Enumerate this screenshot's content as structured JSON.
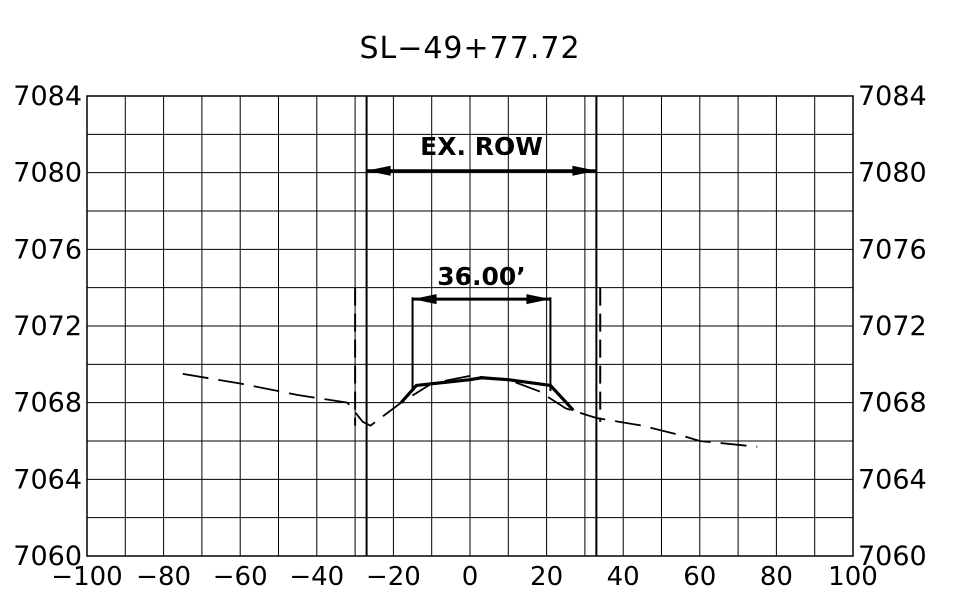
{
  "chart_data": {
    "type": "line",
    "title": "SL−49+77.72",
    "xlabel": "",
    "ylabel": "",
    "xlim": [
      -100,
      100
    ],
    "ylim": [
      7060,
      7084
    ],
    "grid": true,
    "x_ticks": [
      "−100",
      "−80",
      "−60",
      "−40",
      "−20",
      "0",
      "20",
      "40",
      "60",
      "80",
      "100"
    ],
    "y_ticks": [
      "7084",
      "7080",
      "7076",
      "7072",
      "7068",
      "7064",
      "7060"
    ],
    "series": [
      {
        "line_style": "dashed",
        "points": [
          [
            -75,
            7069.5
          ],
          [
            -60,
            7069.0
          ],
          [
            -45,
            7068.4
          ],
          [
            -32,
            7068.0
          ],
          [
            -28,
            7067.0
          ],
          [
            -26,
            7066.8
          ],
          [
            -18,
            7068.0
          ],
          [
            -10,
            7069.0
          ],
          [
            0,
            7069.4
          ],
          [
            10,
            7069.2
          ],
          [
            18,
            7068.6
          ],
          [
            25,
            7067.7
          ],
          [
            33,
            7067.2
          ],
          [
            45,
            7066.8
          ],
          [
            55,
            7066.3
          ],
          [
            60,
            7066.0
          ],
          [
            75,
            7065.7
          ]
        ]
      },
      {
        "line_style": "solid-heavy",
        "points": [
          [
            -18,
            7068.0
          ],
          [
            -14,
            7068.9
          ],
          [
            0,
            7069.2
          ],
          [
            3,
            7069.3
          ],
          [
            10,
            7069.2
          ],
          [
            21,
            7068.9
          ],
          [
            27,
            7067.6
          ]
        ]
      }
    ],
    "vertical_lines": [
      {
        "x": -27,
        "style": "solid"
      },
      {
        "x": 33,
        "style": "solid"
      },
      {
        "x": -30,
        "style": "dashed",
        "y_range": [
          7066.8,
          7074.0
        ]
      },
      {
        "x": 34,
        "style": "dashed",
        "y_range": [
          7067.0,
          7074.0
        ]
      },
      {
        "x": -15,
        "style": "solid",
        "y_range": [
          7068.6,
          7073.5
        ]
      },
      {
        "x": 21,
        "style": "solid",
        "y_range": [
          7068.6,
          7073.5
        ]
      }
    ],
    "annotations": [
      {
        "text": "EX. ROW",
        "x1": -27,
        "x2": 33,
        "y": 7080.1,
        "text_y": 7081.4
      },
      {
        "text": "36.00’",
        "x1": -15,
        "x2": 21,
        "y": 7073.4,
        "text_y": 7074.6
      }
    ]
  }
}
